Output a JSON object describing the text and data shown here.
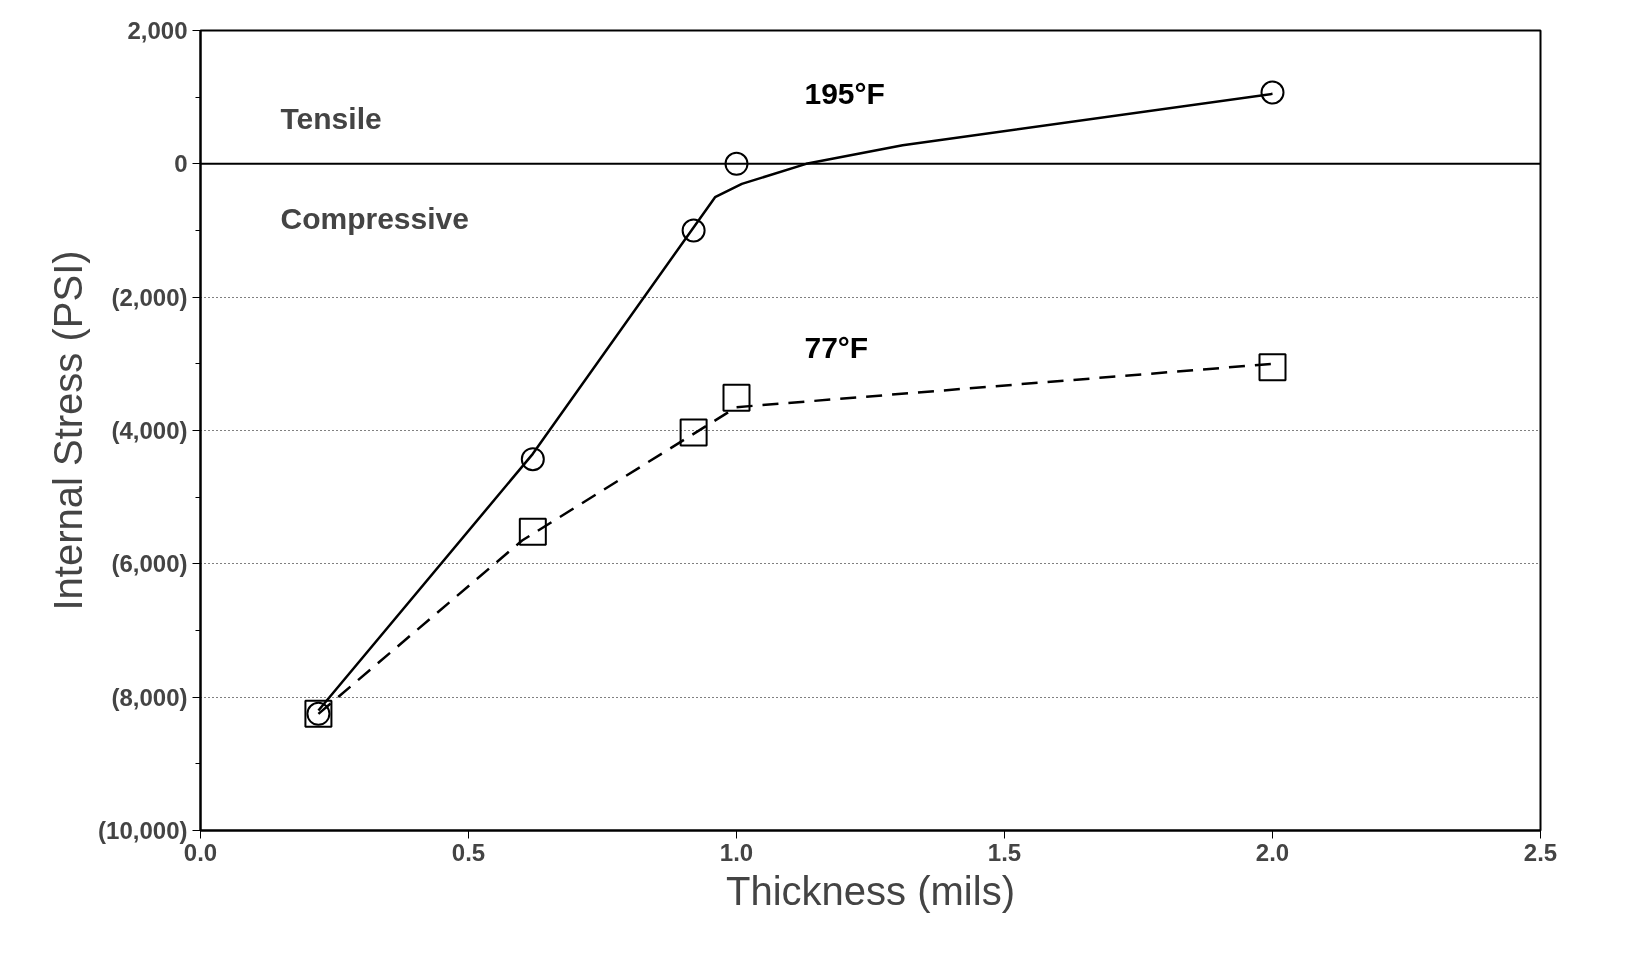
{
  "chart_data": {
    "type": "scatter",
    "xlabel": "Thickness (mils)",
    "ylabel": "Internal Stress (PSI)",
    "xlim": [
      0,
      2.5
    ],
    "xticks": [
      {
        "value": 0,
        "label": "0.0"
      },
      {
        "value": 0.5,
        "label": "0.5"
      },
      {
        "value": 1,
        "label": "1.0"
      },
      {
        "value": 1.5,
        "label": "1.5"
      },
      {
        "value": 2,
        "label": "2.0"
      },
      {
        "value": 2.5,
        "label": "2.5"
      }
    ],
    "ylim": [
      -10000,
      2000
    ],
    "yticks": [
      {
        "value": 2000,
        "label": "2,000"
      },
      {
        "value": 0,
        "label": "0"
      },
      {
        "value": -2000,
        "label": "(2,000)"
      },
      {
        "value": -4000,
        "label": "(4,000)"
      },
      {
        "value": -6000,
        "label": "(6,000)"
      },
      {
        "value": -8000,
        "label": "(8,000)"
      },
      {
        "value": -10000,
        "label": "(10,000)"
      }
    ],
    "grid": "y",
    "series": [
      {
        "name": "195°F",
        "marker": "circle",
        "color": "#000000",
        "x": [
          0.22,
          0.62,
          0.92,
          1.0,
          2.0
        ],
        "values": [
          -8250,
          -4430,
          -1000,
          0,
          1070
        ]
      },
      {
        "name": "77°F",
        "marker": "square",
        "color": "#000000",
        "x": [
          0.22,
          0.62,
          0.92,
          1.0,
          2.0
        ],
        "values": [
          -8250,
          -5520,
          -4030,
          -3510,
          -3050
        ]
      },
      {
        "type": "line",
        "line_style": "solid",
        "color": "#000000",
        "x": [
          0.22,
          0.62,
          0.96,
          1.01,
          1.13,
          1.31,
          2.0
        ],
        "values": [
          -8200,
          -4350,
          -500,
          -300,
          0,
          280,
          1050
        ]
      },
      {
        "type": "line",
        "line_style": "dashed",
        "color": "#000000",
        "x": [
          0.22,
          0.6,
          0.92,
          1.0,
          2.0
        ],
        "values": [
          -8250,
          -5650,
          -4050,
          -3650,
          -3000
        ]
      }
    ],
    "ref_lines": [
      {
        "axis": "y",
        "value": 0,
        "label": null,
        "color": "#000000",
        "line_style": "solid"
      }
    ],
    "annotations": [
      "Tensile",
      "Compressive"
    ]
  }
}
